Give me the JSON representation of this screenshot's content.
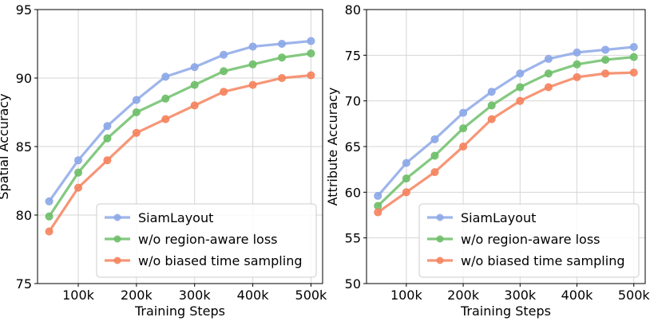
{
  "chart_data": [
    {
      "type": "line",
      "title": "",
      "xlabel": "Training Steps",
      "ylabel": "Spatial Accuracy",
      "x": [
        50000,
        100000,
        150000,
        200000,
        250000,
        300000,
        350000,
        400000,
        450000,
        500000
      ],
      "xlim": [
        30000,
        520000
      ],
      "ylim": [
        75,
        95
      ],
      "xticks": [
        100000,
        200000,
        300000,
        400000,
        500000
      ],
      "xtick_labels": [
        "100k",
        "200k",
        "300k",
        "400k",
        "500k"
      ],
      "yticks": [
        75,
        80,
        85,
        90,
        95
      ],
      "ytick_labels": [
        "75",
        "80",
        "85",
        "90",
        "95"
      ],
      "grid": true,
      "legend_position": "lower-right",
      "series": [
        {
          "name": "SiamLayout",
          "color": "#8da8e8",
          "values": [
            81.0,
            84.0,
            86.5,
            88.4,
            90.1,
            90.8,
            91.7,
            92.3,
            92.5,
            92.7
          ]
        },
        {
          "name": "w/o region-aware loss",
          "color": "#6fbf6a",
          "values": [
            79.9,
            83.1,
            85.6,
            87.5,
            88.5,
            89.5,
            90.5,
            91.0,
            91.5,
            91.8
          ]
        },
        {
          "name": "w/o biased time sampling",
          "color": "#f5845f",
          "values": [
            78.8,
            82.0,
            84.0,
            86.0,
            87.0,
            88.0,
            89.0,
            89.5,
            90.0,
            90.2
          ]
        }
      ]
    },
    {
      "type": "line",
      "title": "",
      "xlabel": "Training Steps",
      "ylabel": "Attribute Accuracy",
      "x": [
        50000,
        100000,
        150000,
        200000,
        250000,
        300000,
        350000,
        400000,
        450000,
        500000
      ],
      "xlim": [
        30000,
        520000
      ],
      "ylim": [
        50,
        80
      ],
      "xticks": [
        100000,
        200000,
        300000,
        400000,
        500000
      ],
      "xtick_labels": [
        "100k",
        "200k",
        "300k",
        "400k",
        "500k"
      ],
      "yticks": [
        50,
        55,
        60,
        65,
        70,
        75,
        80
      ],
      "ytick_labels": [
        "50",
        "55",
        "60",
        "65",
        "70",
        "75",
        "80"
      ],
      "grid": true,
      "legend_position": "lower-right",
      "series": [
        {
          "name": "SiamLayout",
          "color": "#8da8e8",
          "values": [
            59.6,
            63.2,
            65.8,
            68.7,
            71.0,
            73.0,
            74.6,
            75.3,
            75.6,
            75.9
          ]
        },
        {
          "name": "w/o region-aware loss",
          "color": "#6fbf6a",
          "values": [
            58.5,
            61.5,
            64.0,
            67.0,
            69.5,
            71.5,
            73.0,
            74.0,
            74.5,
            74.8
          ]
        },
        {
          "name": "w/o biased time sampling",
          "color": "#f5845f",
          "values": [
            57.8,
            60.0,
            62.2,
            65.0,
            68.0,
            70.0,
            71.5,
            72.6,
            73.0,
            73.1
          ]
        }
      ]
    }
  ]
}
